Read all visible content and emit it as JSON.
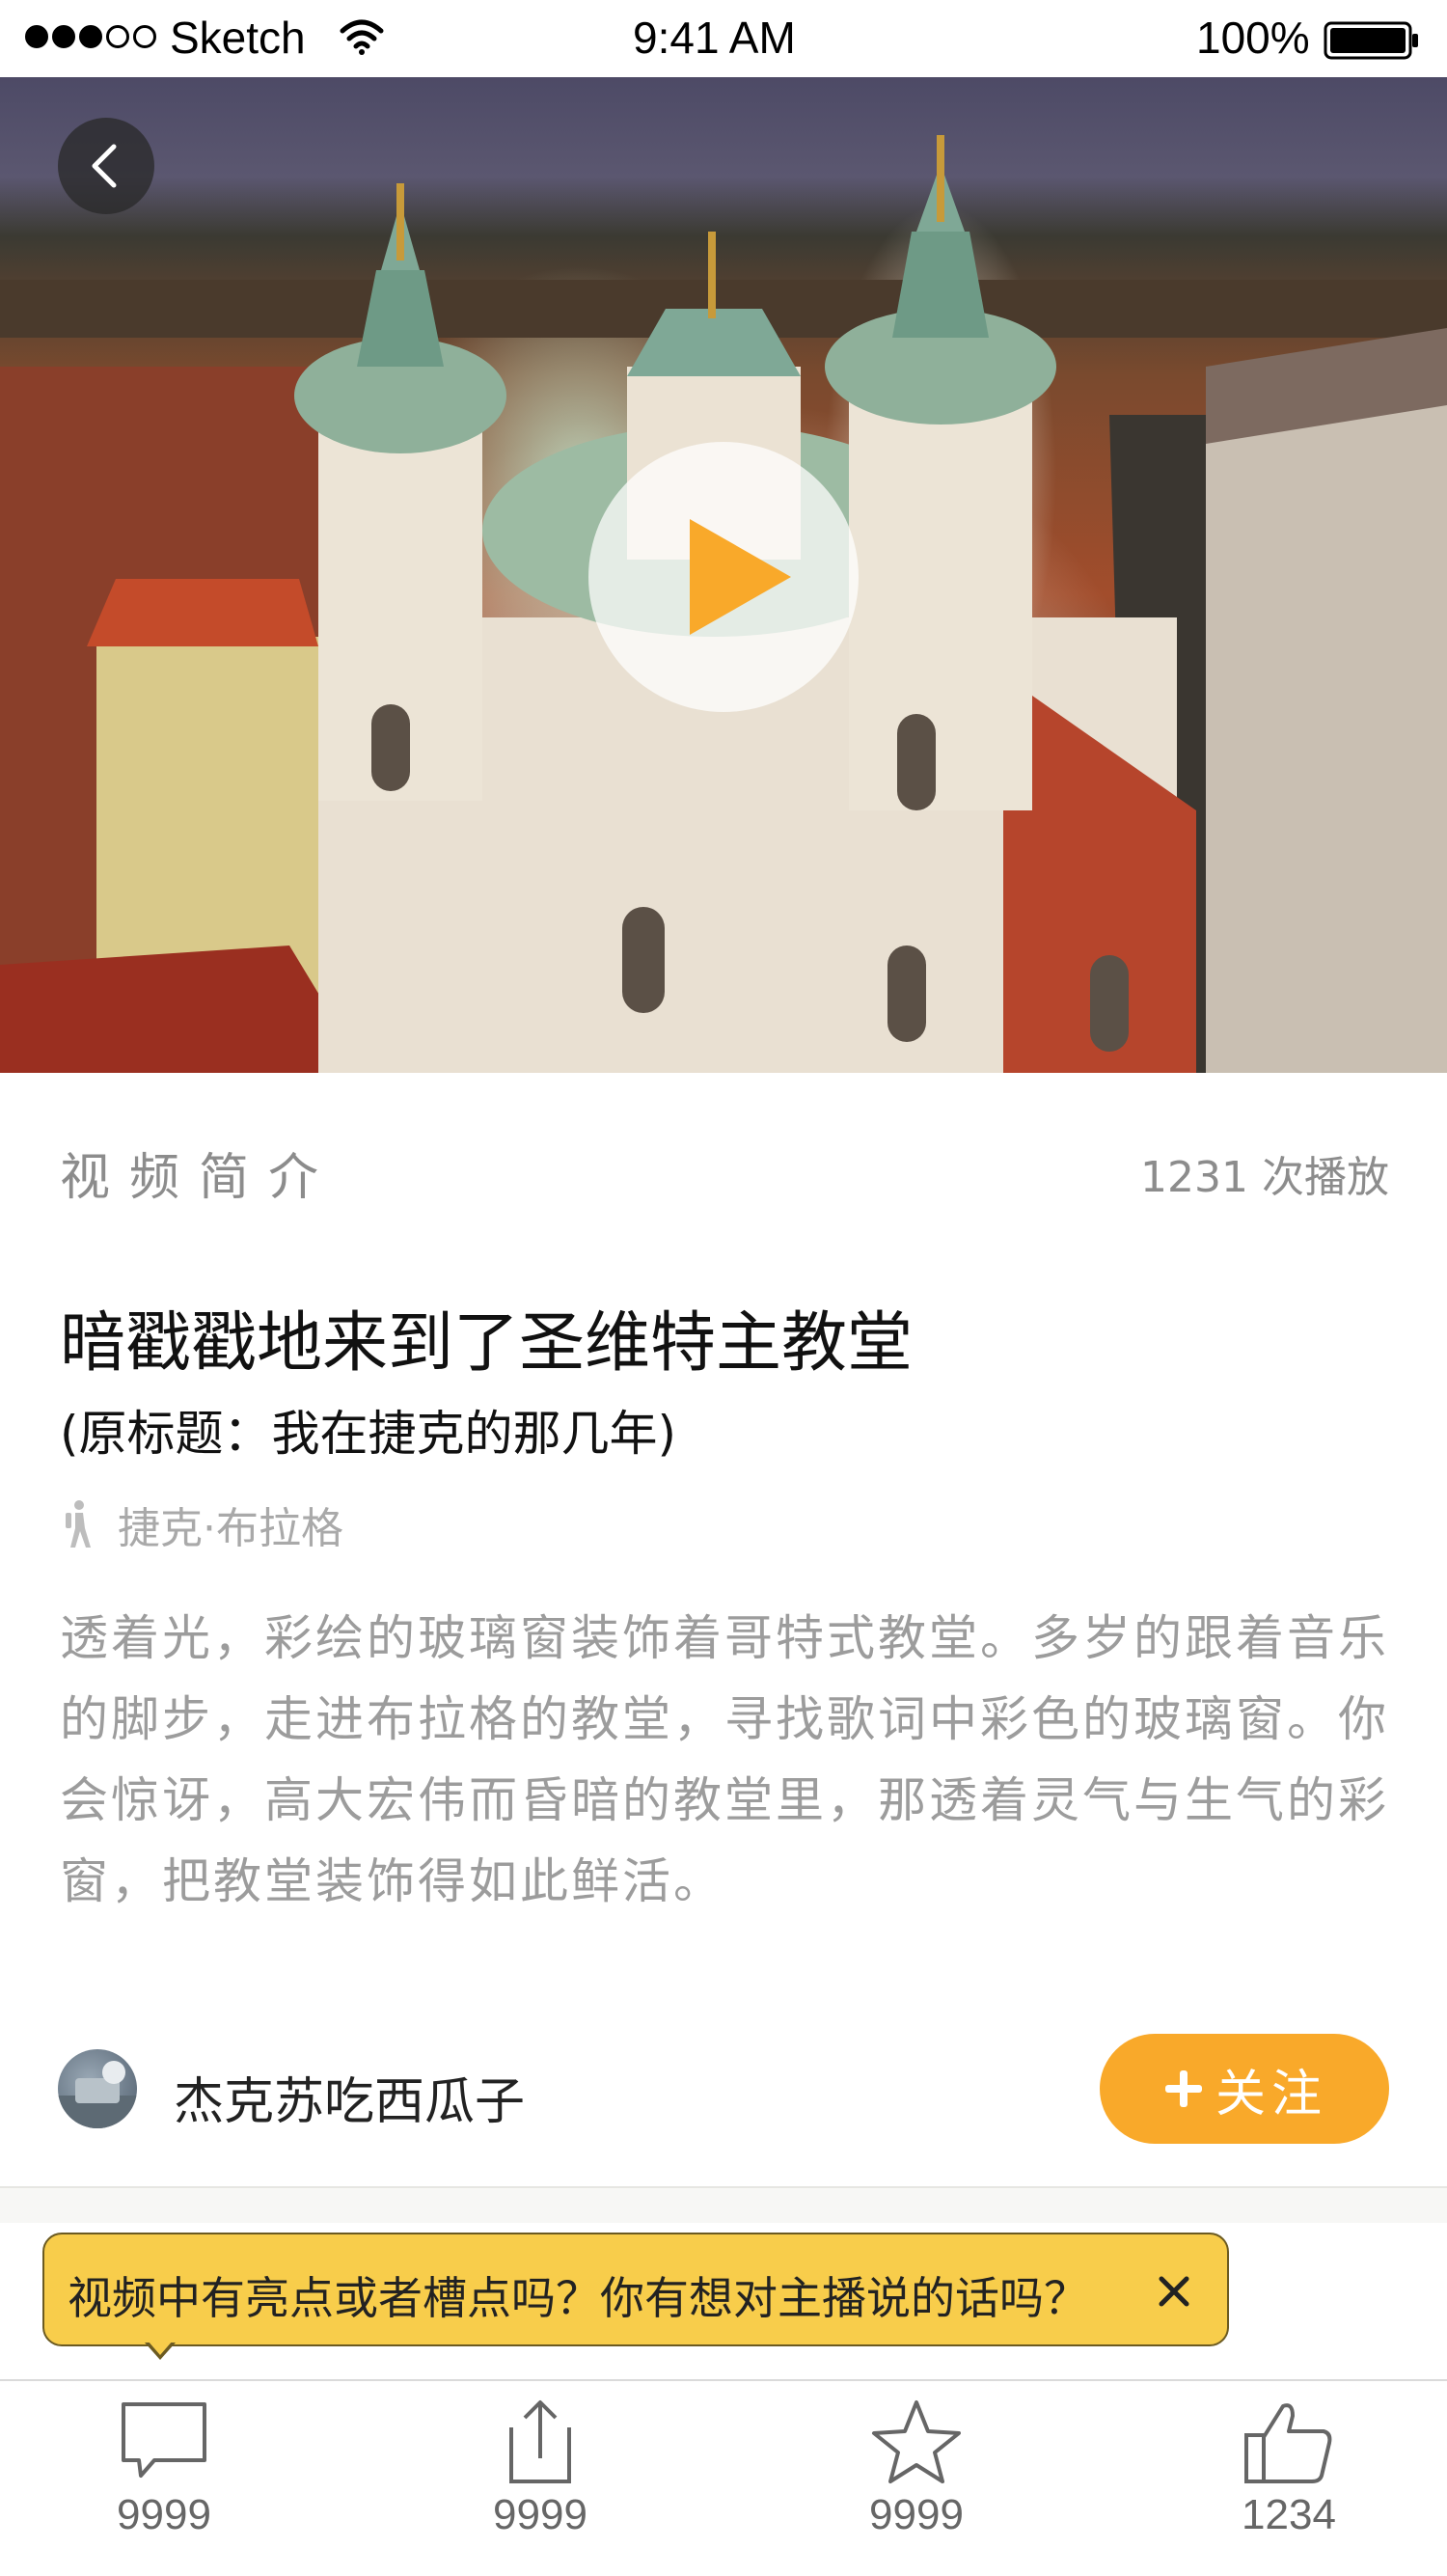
{
  "status_bar": {
    "carrier": "Sketch",
    "time": "9:41 AM",
    "battery": "100%"
  },
  "video": {
    "back_icon": "chevron-left-icon",
    "play_icon": "play-icon"
  },
  "intro": {
    "section_title": "视频简介",
    "play_count": "1231 次播放",
    "title": "暗戳戳地来到了圣维特主教堂",
    "original_title": "(原标题：我在捷克的那几年)",
    "location": "捷克·布拉格",
    "location_icon": "hiker-icon",
    "description": "透着光，彩绘的玻璃窗装饰着哥特式教堂。多岁的跟着音乐的脚步，走进布拉格的教堂，寻找歌词中彩色的玻璃窗。你会惊讶，高大宏伟而昏暗的教堂里，那透着灵气与生气的彩窗，把教堂装饰得如此鲜活。"
  },
  "author": {
    "name": "杰克苏吃西瓜子",
    "follow_label": "关注",
    "follow_color": "#f9a92a"
  },
  "tooltip": {
    "text": "视频中有亮点或者槽点吗？你有想对主播说的话吗？",
    "close_icon": "close-icon",
    "color": "#f8cd4b"
  },
  "bottom_bar": {
    "comment_count": "9999",
    "share_count": "9999",
    "favorite_count": "9999",
    "like_count": "1234"
  }
}
